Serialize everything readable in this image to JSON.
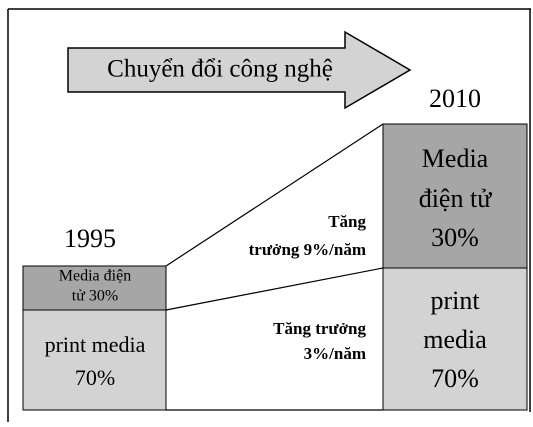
{
  "arrow": {
    "label": "Chuyển đổi công nghệ"
  },
  "left": {
    "year": "1995",
    "top": [
      "Media điện",
      "tử 30%"
    ],
    "bottom": [
      "print media",
      "70%"
    ]
  },
  "right": {
    "year": "2010",
    "top": [
      "Media",
      "điện tử",
      "30%"
    ],
    "bottom": [
      "print",
      "media",
      "70%"
    ]
  },
  "growth_top": [
    "Tăng",
    "trưởng 9%/năm"
  ],
  "growth_bottom": [
    "Tăng trưởng",
    "3%/năm"
  ]
}
